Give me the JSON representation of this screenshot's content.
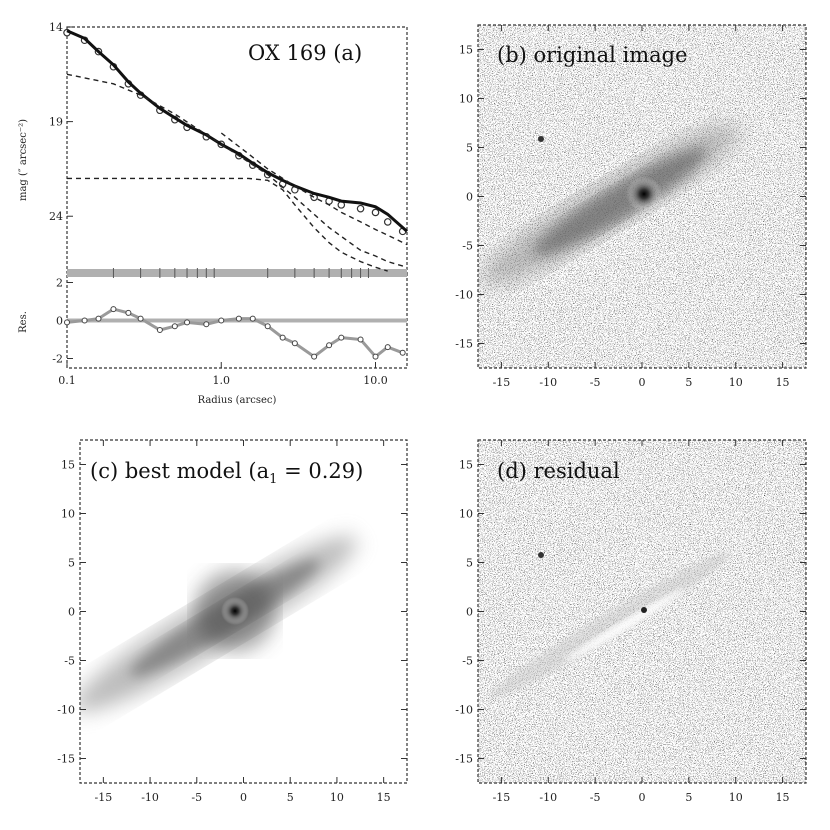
{
  "chart_data": [
    {
      "id": "a",
      "type": "line",
      "title": "OX 169 (a)",
      "xlabel": "Radius (arcsec)",
      "ylabel_top": "mag (″ arcsec⁻²)",
      "ylabel_bottom": "Res.",
      "xscale": "log",
      "xlim": [
        0.1,
        16
      ],
      "xticks": [
        "0.1",
        "1.0",
        "10.0"
      ],
      "xtick_values": [
        0.1,
        1.0,
        10.0
      ],
      "top_ylim": [
        14,
        27
      ],
      "top_yticks": [
        "14",
        "19",
        "24"
      ],
      "top_ytick_values": [
        14,
        19,
        24
      ],
      "bottom_ylim": [
        -2.5,
        2.5
      ],
      "bottom_yticks": [
        "2",
        "0",
        "-2"
      ],
      "bottom_ytick_values": [
        2,
        0,
        -2
      ],
      "series": [
        {
          "style": "data-circles",
          "x": [
            0.1,
            0.13,
            0.16,
            0.2,
            0.25,
            0.3,
            0.4,
            0.5,
            0.6,
            0.8,
            1.0,
            1.3,
            1.6,
            2.0,
            2.5,
            3.0,
            4.0,
            5.0,
            6.0,
            8.0,
            10.0,
            12.0,
            15.0
          ],
          "y": [
            14.3,
            14.7,
            15.3,
            16.1,
            17.0,
            17.6,
            18.4,
            18.9,
            19.3,
            19.8,
            20.2,
            20.8,
            21.3,
            21.8,
            22.3,
            22.6,
            23.0,
            23.2,
            23.4,
            23.6,
            23.8,
            24.3,
            24.8
          ]
        },
        {
          "style": "total-model",
          "x": [
            0.1,
            0.13,
            0.16,
            0.2,
            0.25,
            0.3,
            0.4,
            0.5,
            0.6,
            0.8,
            1.0,
            1.3,
            1.6,
            2.0,
            2.5,
            3.0,
            4.0,
            5.0,
            6.0,
            8.0,
            10.0,
            12.0,
            16.0
          ],
          "y": [
            14.2,
            14.6,
            15.3,
            16.0,
            16.9,
            17.5,
            18.3,
            18.8,
            19.2,
            19.7,
            20.2,
            20.7,
            21.2,
            21.7,
            22.1,
            22.4,
            22.8,
            23.0,
            23.2,
            23.3,
            23.5,
            23.9,
            24.8
          ]
        },
        {
          "style": "dashed",
          "x": [
            0.1,
            0.2,
            0.3,
            0.5,
            1.0,
            2.0,
            3.0,
            5.0,
            8.0,
            10.0,
            12.0,
            16.0
          ],
          "y": [
            16.5,
            17.0,
            17.6,
            18.6,
            20.2,
            21.8,
            23.0,
            24.6,
            25.8,
            26.1,
            26.4,
            26.7
          ]
        },
        {
          "style": "dashed",
          "x": [
            0.1,
            0.5,
            1.0,
            1.5,
            2.0,
            2.5,
            3.0,
            4.0,
            5.0,
            6.0,
            8.0,
            10.0,
            12.0
          ],
          "y": [
            22.0,
            22.0,
            22.0,
            22.0,
            22.1,
            22.6,
            23.4,
            24.6,
            25.4,
            25.9,
            26.4,
            26.7,
            26.9
          ]
        },
        {
          "style": "dashed",
          "x": [
            1.0,
            1.5,
            2.0,
            3.0,
            4.0,
            5.0,
            6.0,
            8.0,
            10.0,
            12.0,
            16.0
          ],
          "y": [
            19.6,
            20.7,
            21.5,
            22.4,
            23.0,
            23.4,
            23.8,
            24.3,
            24.7,
            25.0,
            25.5
          ]
        },
        {
          "style": "residual",
          "x": [
            0.1,
            0.13,
            0.16,
            0.2,
            0.25,
            0.3,
            0.4,
            0.5,
            0.6,
            0.8,
            1.0,
            1.3,
            1.6,
            2.0,
            2.5,
            3.0,
            4.0,
            5.0,
            6.0,
            8.0,
            10.0,
            12.0,
            15.0
          ],
          "y": [
            -0.1,
            0.0,
            0.1,
            0.6,
            0.4,
            0.1,
            -0.5,
            -0.3,
            -0.1,
            -0.2,
            0.0,
            0.1,
            0.1,
            -0.3,
            -0.9,
            -1.2,
            -1.9,
            -1.3,
            -0.9,
            -1.0,
            -1.9,
            -1.4,
            -1.7
          ]
        }
      ],
      "grid": false,
      "legend": "none"
    },
    {
      "id": "b",
      "type": "heatmap",
      "title": "(b) original image",
      "xlim": [
        -17.5,
        17.5
      ],
      "ylim": [
        -17.5,
        17.5
      ],
      "xticks": [
        "-15",
        "-10",
        "-5",
        "0",
        "5",
        "10",
        "15"
      ],
      "yticks": [
        "15",
        "10",
        "5",
        "0",
        "-5",
        "-10",
        "-15"
      ],
      "tick_values": [
        -15,
        -10,
        -5,
        0,
        5,
        10,
        15
      ],
      "color_scale": "grayscale"
    },
    {
      "id": "c",
      "type": "heatmap",
      "title": "(c) best model (a",
      "title_sub": "1",
      "title_rest": " = 0.29)",
      "xlim": [
        -17.5,
        17.5
      ],
      "ylim": [
        -17.5,
        17.5
      ],
      "xticks": [
        "-15",
        "-10",
        "-5",
        "0",
        "5",
        "10",
        "15"
      ],
      "yticks": [
        "15",
        "10",
        "5",
        "0",
        "-5",
        "-10",
        "-15"
      ],
      "tick_values": [
        -15,
        -10,
        -5,
        0,
        5,
        10,
        15
      ],
      "color_scale": "grayscale"
    },
    {
      "id": "d",
      "type": "heatmap",
      "title": "(d) residual",
      "xlim": [
        -17.5,
        17.5
      ],
      "ylim": [
        -17.5,
        17.5
      ],
      "xticks": [
        "-15",
        "-10",
        "-5",
        "0",
        "5",
        "10",
        "15"
      ],
      "yticks": [
        "15",
        "10",
        "5",
        "0",
        "-5",
        "-10",
        "-15"
      ],
      "tick_values": [
        -15,
        -10,
        -5,
        0,
        5,
        10,
        15
      ],
      "color_scale": "grayscale"
    }
  ],
  "colors": {
    "ink": "#222222",
    "gray_band": "#b0b0b0",
    "residual_line": "#9a9a9a"
  }
}
